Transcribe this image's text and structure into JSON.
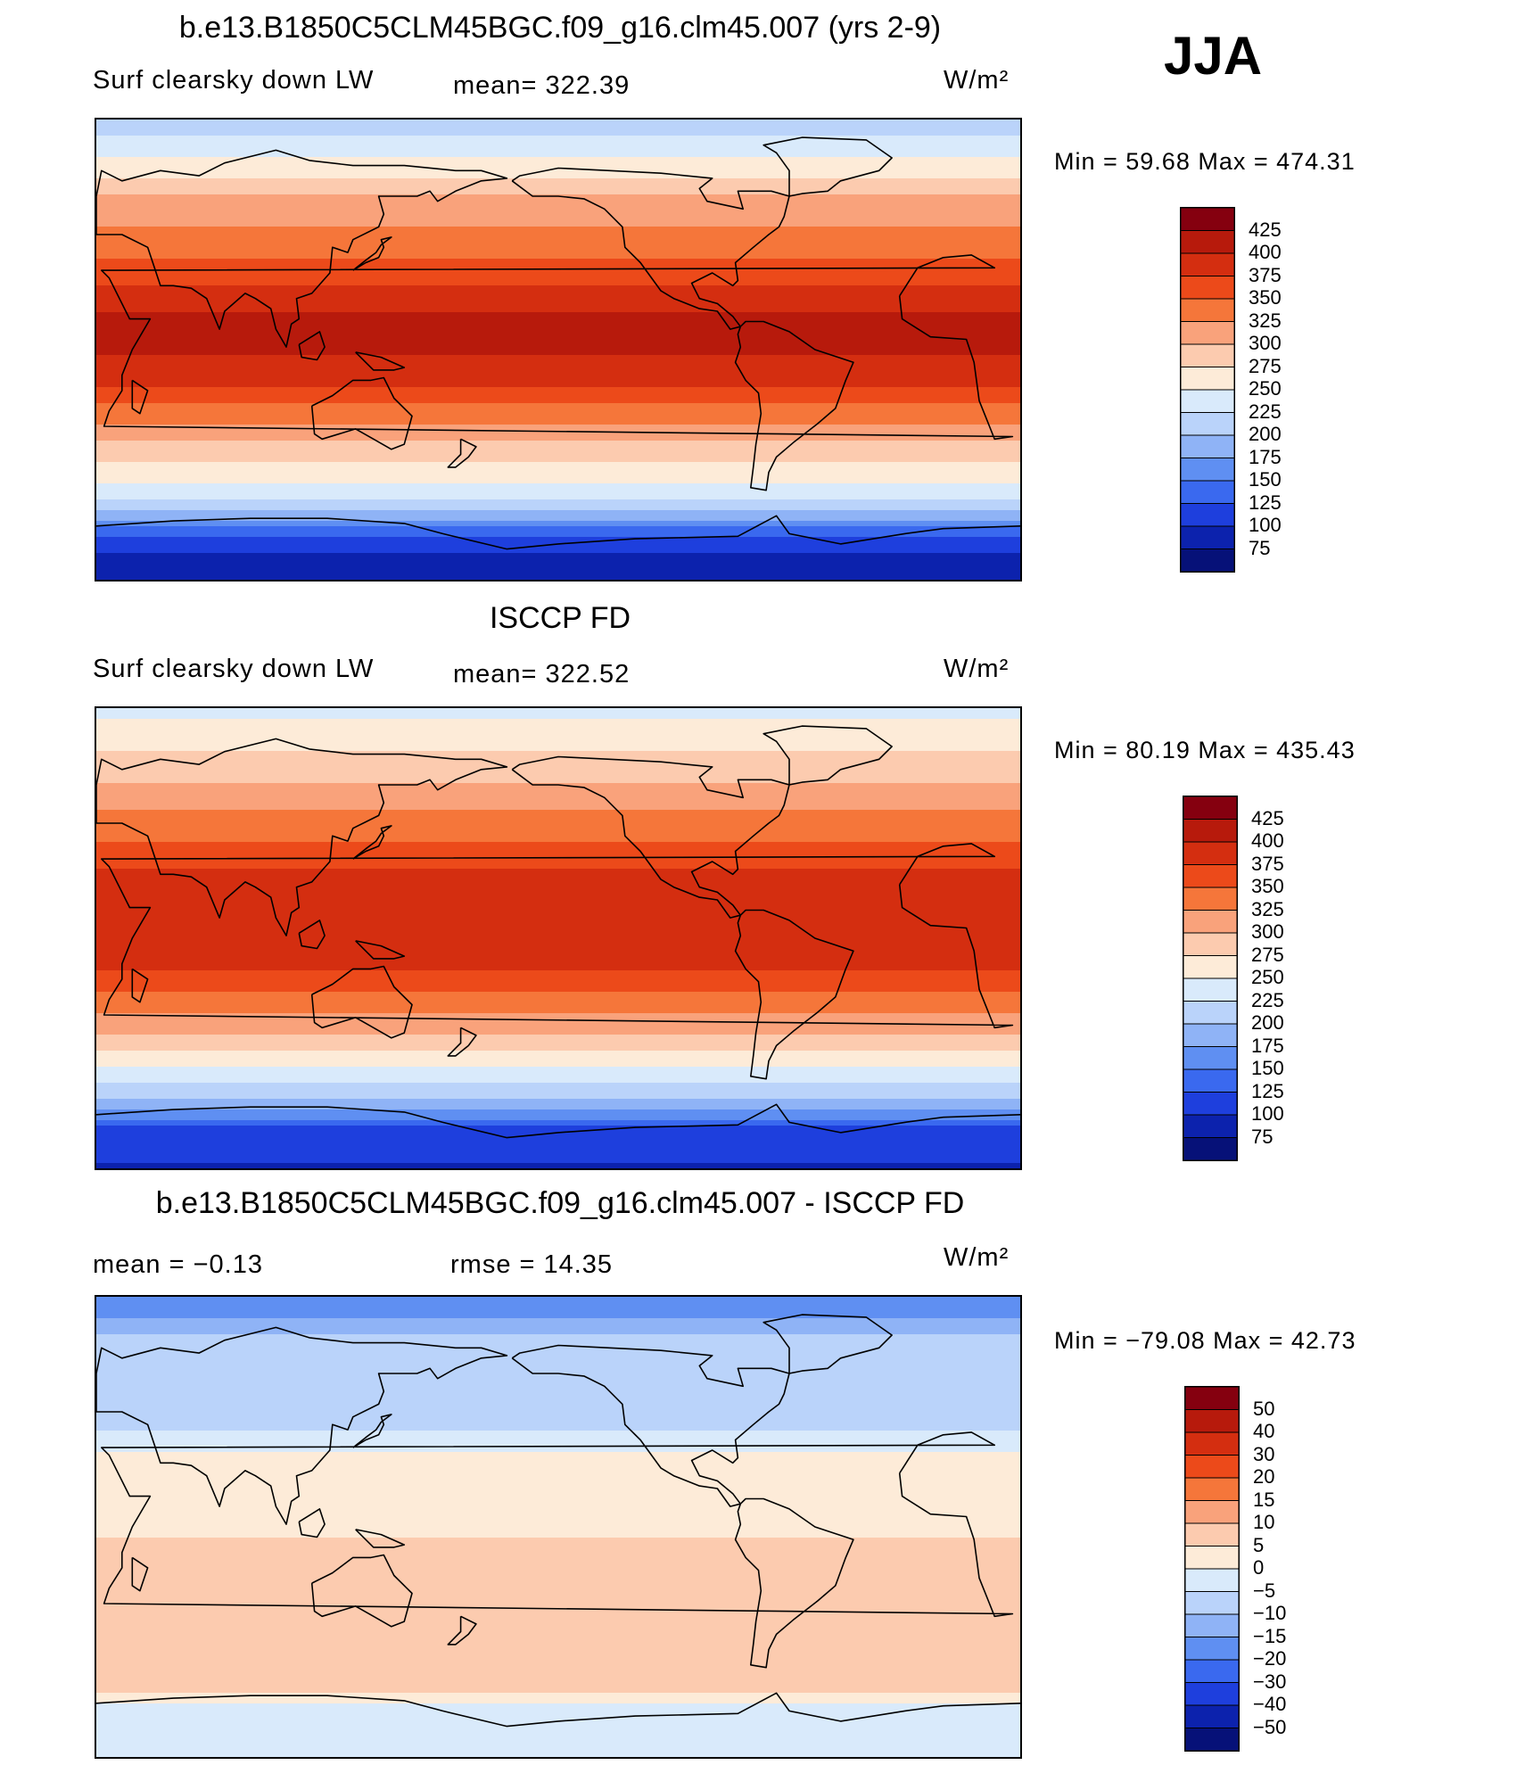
{
  "season": "JJA",
  "panels": [
    {
      "title": "b.e13.B1850C5CLM45BGC.f09_g16.clm45.007 (yrs 2-9)",
      "left_label": "Surf clearsky down LW",
      "middle_label": "mean=  322.39",
      "units": "W/m²",
      "minmax": "Min =   59.68  Max  =  474.31"
    },
    {
      "title": "ISCCP FD",
      "left_label": "Surf clearsky down LW",
      "middle_label": "mean=  322.52",
      "units": "W/m²",
      "minmax": "Min =   80.19  Max  =  435.43"
    },
    {
      "title": "b.e13.B1850C5CLM45BGC.f09_g16.clm45.007 - ISCCP FD",
      "left_label": "mean  =    −0.13",
      "middle_label": "rmse  =    14.35",
      "units": "W/m²",
      "minmax": "Min  = −79.08  Max  =    42.73"
    }
  ],
  "chart_data": [
    {
      "type": "heatmap",
      "title": "b.e13.B1850C5CLM45BGC.f09_g16.clm45.007 (yrs 2-9)",
      "variable": "Surf clearsky down LW",
      "units": "W/m²",
      "mean": 322.39,
      "min": 59.68,
      "max": 474.31,
      "colorbar_levels": [
        425,
        400,
        375,
        350,
        325,
        300,
        275,
        250,
        225,
        200,
        175,
        150,
        125,
        100,
        75
      ],
      "zonal_profile": [
        {
          "lat": 90,
          "value": 210
        },
        {
          "lat": 75,
          "value": 250
        },
        {
          "lat": 60,
          "value": 300
        },
        {
          "lat": 45,
          "value": 330
        },
        {
          "lat": 30,
          "value": 365
        },
        {
          "lat": 15,
          "value": 400
        },
        {
          "lat": 0,
          "value": 405
        },
        {
          "lat": -15,
          "value": 375
        },
        {
          "lat": -30,
          "value": 320
        },
        {
          "lat": -45,
          "value": 270
        },
        {
          "lat": -55,
          "value": 240
        },
        {
          "lat": -65,
          "value": 190
        },
        {
          "lat": -75,
          "value": 110
        },
        {
          "lat": -90,
          "value": 80
        }
      ]
    },
    {
      "type": "heatmap",
      "title": "ISCCP FD",
      "variable": "Surf clearsky down LW",
      "units": "W/m²",
      "mean": 322.52,
      "min": 80.19,
      "max": 435.43,
      "colorbar_levels": [
        425,
        400,
        375,
        350,
        325,
        300,
        275,
        250,
        225,
        200,
        175,
        150,
        125,
        100,
        75
      ],
      "zonal_profile": [
        {
          "lat": 90,
          "value": 240
        },
        {
          "lat": 75,
          "value": 270
        },
        {
          "lat": 60,
          "value": 300
        },
        {
          "lat": 45,
          "value": 335
        },
        {
          "lat": 30,
          "value": 370
        },
        {
          "lat": 15,
          "value": 395
        },
        {
          "lat": 0,
          "value": 400
        },
        {
          "lat": -15,
          "value": 370
        },
        {
          "lat": -30,
          "value": 320
        },
        {
          "lat": -45,
          "value": 275
        },
        {
          "lat": -55,
          "value": 235
        },
        {
          "lat": -65,
          "value": 185
        },
        {
          "lat": -75,
          "value": 120
        },
        {
          "lat": -90,
          "value": 95
        }
      ]
    },
    {
      "type": "heatmap",
      "title": "b.e13.B1850C5CLM45BGC.f09_g16.clm45.007 - ISCCP FD",
      "units": "W/m²",
      "mean": -0.13,
      "rmse": 14.35,
      "min": -79.08,
      "max": 42.73,
      "colorbar_levels": [
        "50",
        "40",
        "30",
        "20",
        "15",
        "10",
        "5",
        "0",
        "−5",
        "−10",
        "−15",
        "−20",
        "−30",
        "−40",
        "−50"
      ],
      "zonal_profile": [
        {
          "lat": 90,
          "value": -20
        },
        {
          "lat": 75,
          "value": -10
        },
        {
          "lat": 60,
          "value": -5
        },
        {
          "lat": 45,
          "value": -10
        },
        {
          "lat": 30,
          "value": 0
        },
        {
          "lat": 15,
          "value": 5
        },
        {
          "lat": 0,
          "value": 3
        },
        {
          "lat": -15,
          "value": 10
        },
        {
          "lat": -30,
          "value": 8
        },
        {
          "lat": -45,
          "value": 5
        },
        {
          "lat": -55,
          "value": 8
        },
        {
          "lat": -65,
          "value": 5
        },
        {
          "lat": -75,
          "value": -5
        },
        {
          "lat": -90,
          "value": -2
        }
      ]
    }
  ],
  "colors": {
    "abs_scale": [
      "#85000f",
      "#b71a0c",
      "#d42e10",
      "#ec4a1a",
      "#f5763a",
      "#f9a27b",
      "#fccbaf",
      "#fdebd8",
      "#d9eafb",
      "#bad3fa",
      "#8fb3f6",
      "#5f8ff2",
      "#3a69ef",
      "#1e3fdd",
      "#0c22ad",
      "#061178"
    ],
    "diff_scale": [
      "#85000f",
      "#b71a0c",
      "#d42e10",
      "#ec4a1a",
      "#f5763a",
      "#f9a27b",
      "#fccbaf",
      "#fdebd8",
      "#d9eafb",
      "#bad3fa",
      "#8fb3f6",
      "#5f8ff2",
      "#3a69ef",
      "#1e3fdd",
      "#0c22ad",
      "#061178"
    ]
  }
}
